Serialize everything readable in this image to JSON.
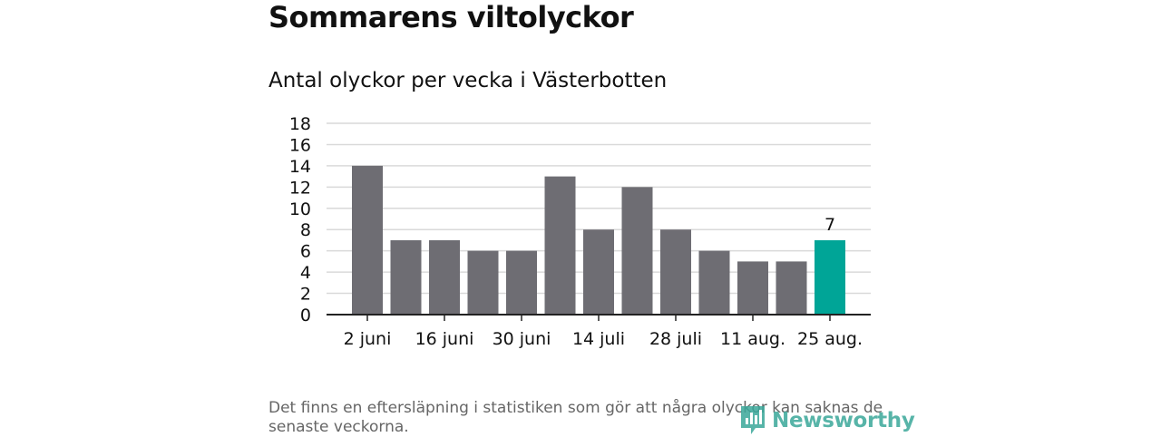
{
  "header": {
    "title": "Sommarens viltolyckor",
    "subtitle": "Antal olyckor per vecka i Västerbotten"
  },
  "footnote": "Det finns en eftersläpning i statistiken som gör att några olyckor kan saknas de senaste veckorna.",
  "logo": {
    "text": "Newsworthy",
    "icon": "bar-chart-pin-icon"
  },
  "colors": {
    "bar": "#6e6d73",
    "highlight": "#00a597",
    "grid": "#d9d9d9",
    "axis": "#222222",
    "brand": "#3aa89a"
  },
  "chart_data": {
    "type": "bar",
    "categories": [
      "2 juni",
      "",
      "16 juni",
      "",
      "30 juni",
      "",
      "14 juli",
      "",
      "28 juli",
      "",
      "11 aug.",
      "",
      "25 aug."
    ],
    "values": [
      14,
      7,
      7,
      6,
      6,
      13,
      8,
      12,
      8,
      6,
      5,
      5,
      7
    ],
    "highlight_index": 12,
    "data_labels": [
      {
        "index": 12,
        "text": "7"
      }
    ],
    "ylim": [
      0,
      18
    ],
    "yticks": [
      0,
      2,
      4,
      6,
      8,
      10,
      12,
      14,
      16,
      18
    ],
    "xlabel": "",
    "ylabel": "",
    "grid": true,
    "legend": "none"
  }
}
